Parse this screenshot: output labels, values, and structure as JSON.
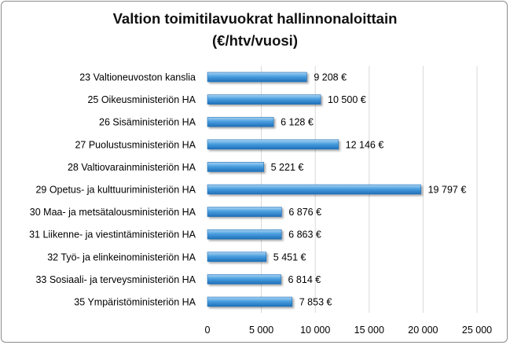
{
  "chart_data": {
    "type": "bar",
    "orientation": "horizontal",
    "title": "Valtion toimitilavuokrat hallinnonaloittain",
    "subtitle": "(€/htv/vuosi)",
    "categories": [
      "23 Valtioneuvoston kanslia",
      "25 Oikeusministeriön HA",
      "26 Sisäministeriön HA",
      "27 Puolustusministeriön HA",
      "28 Valtiovarainministeriön HA",
      "29 Opetus- ja kulttuuriministeriön HA",
      "30 Maa- ja metsätalousministeriön HA",
      "31 Liikenne- ja viestintäministeriön HA",
      "32 Työ- ja elinkeinoministeriön HA",
      "33 Sosiaali- ja terveysministeriön HA",
      "35 Ympäristöministeriön HA"
    ],
    "values": [
      9208,
      10500,
      6128,
      12146,
      5221,
      19797,
      6876,
      6863,
      5451,
      6814,
      7853
    ],
    "data_labels": [
      "9 208 €",
      "10 500 €",
      "6 128 €",
      "12 146 €",
      "5 221 €",
      "19 797 €",
      "6 876 €",
      "6 863 €",
      "5 451 €",
      "6 814 €",
      "7 853 €"
    ],
    "x_ticks": [
      0,
      5000,
      10000,
      15000,
      20000,
      25000
    ],
    "x_tick_labels": [
      "0",
      "5 000",
      "10 000",
      "15 000",
      "20 000",
      "25 000"
    ],
    "xlim": [
      0,
      25000
    ],
    "grid": true,
    "legend": "none",
    "colors": {
      "bar_light": "#a9d3f2",
      "bar_mid": "#4a9fdf",
      "bar_dark": "#1e6fb8",
      "grid": "#d9d9d9"
    }
  }
}
